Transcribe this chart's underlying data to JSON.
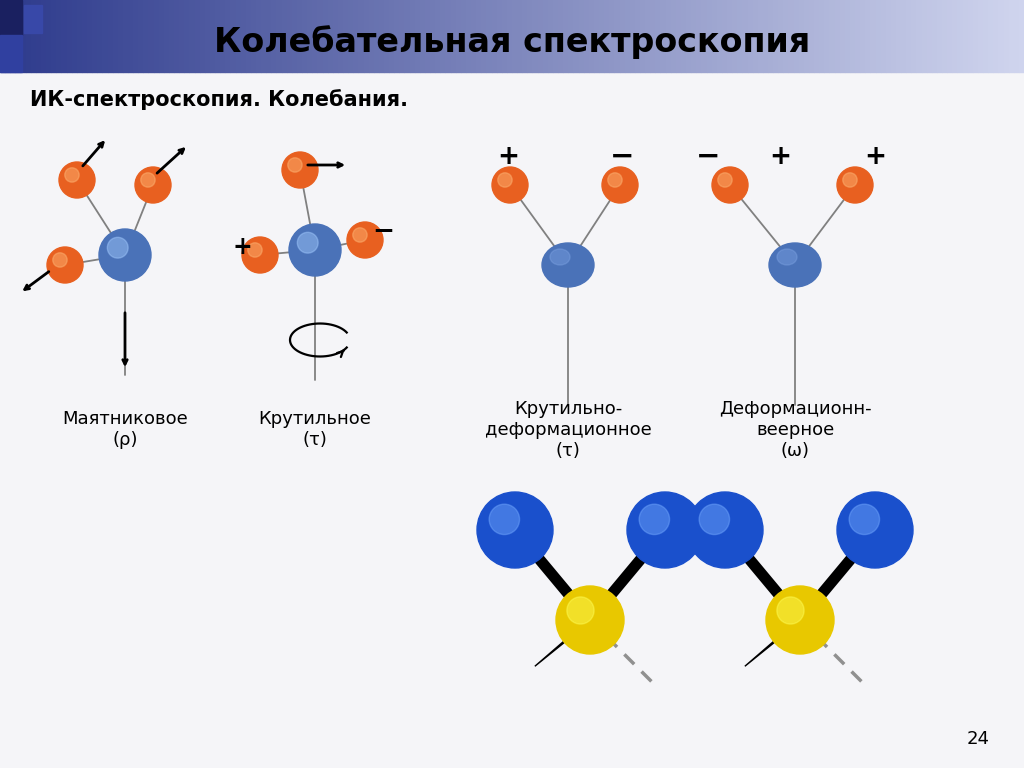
{
  "title": "Колебательная спектроскопия",
  "subtitle": "ИК-спектроскопия. Колебания.",
  "page_number": "24",
  "bg_color": "#f5f5f8",
  "header_gradient_left": "#2d3a8c",
  "header_gradient_right": "#d0d5ee",
  "title_color": "#111111",
  "orange_color": "#e86020",
  "blue_center_color": "#4a72b8",
  "blue_large_color": "#1a50cc",
  "yellow_color": "#e8c800",
  "label_fontsize": 13,
  "subtitle_fontsize": 15,
  "title_fontsize": 24
}
